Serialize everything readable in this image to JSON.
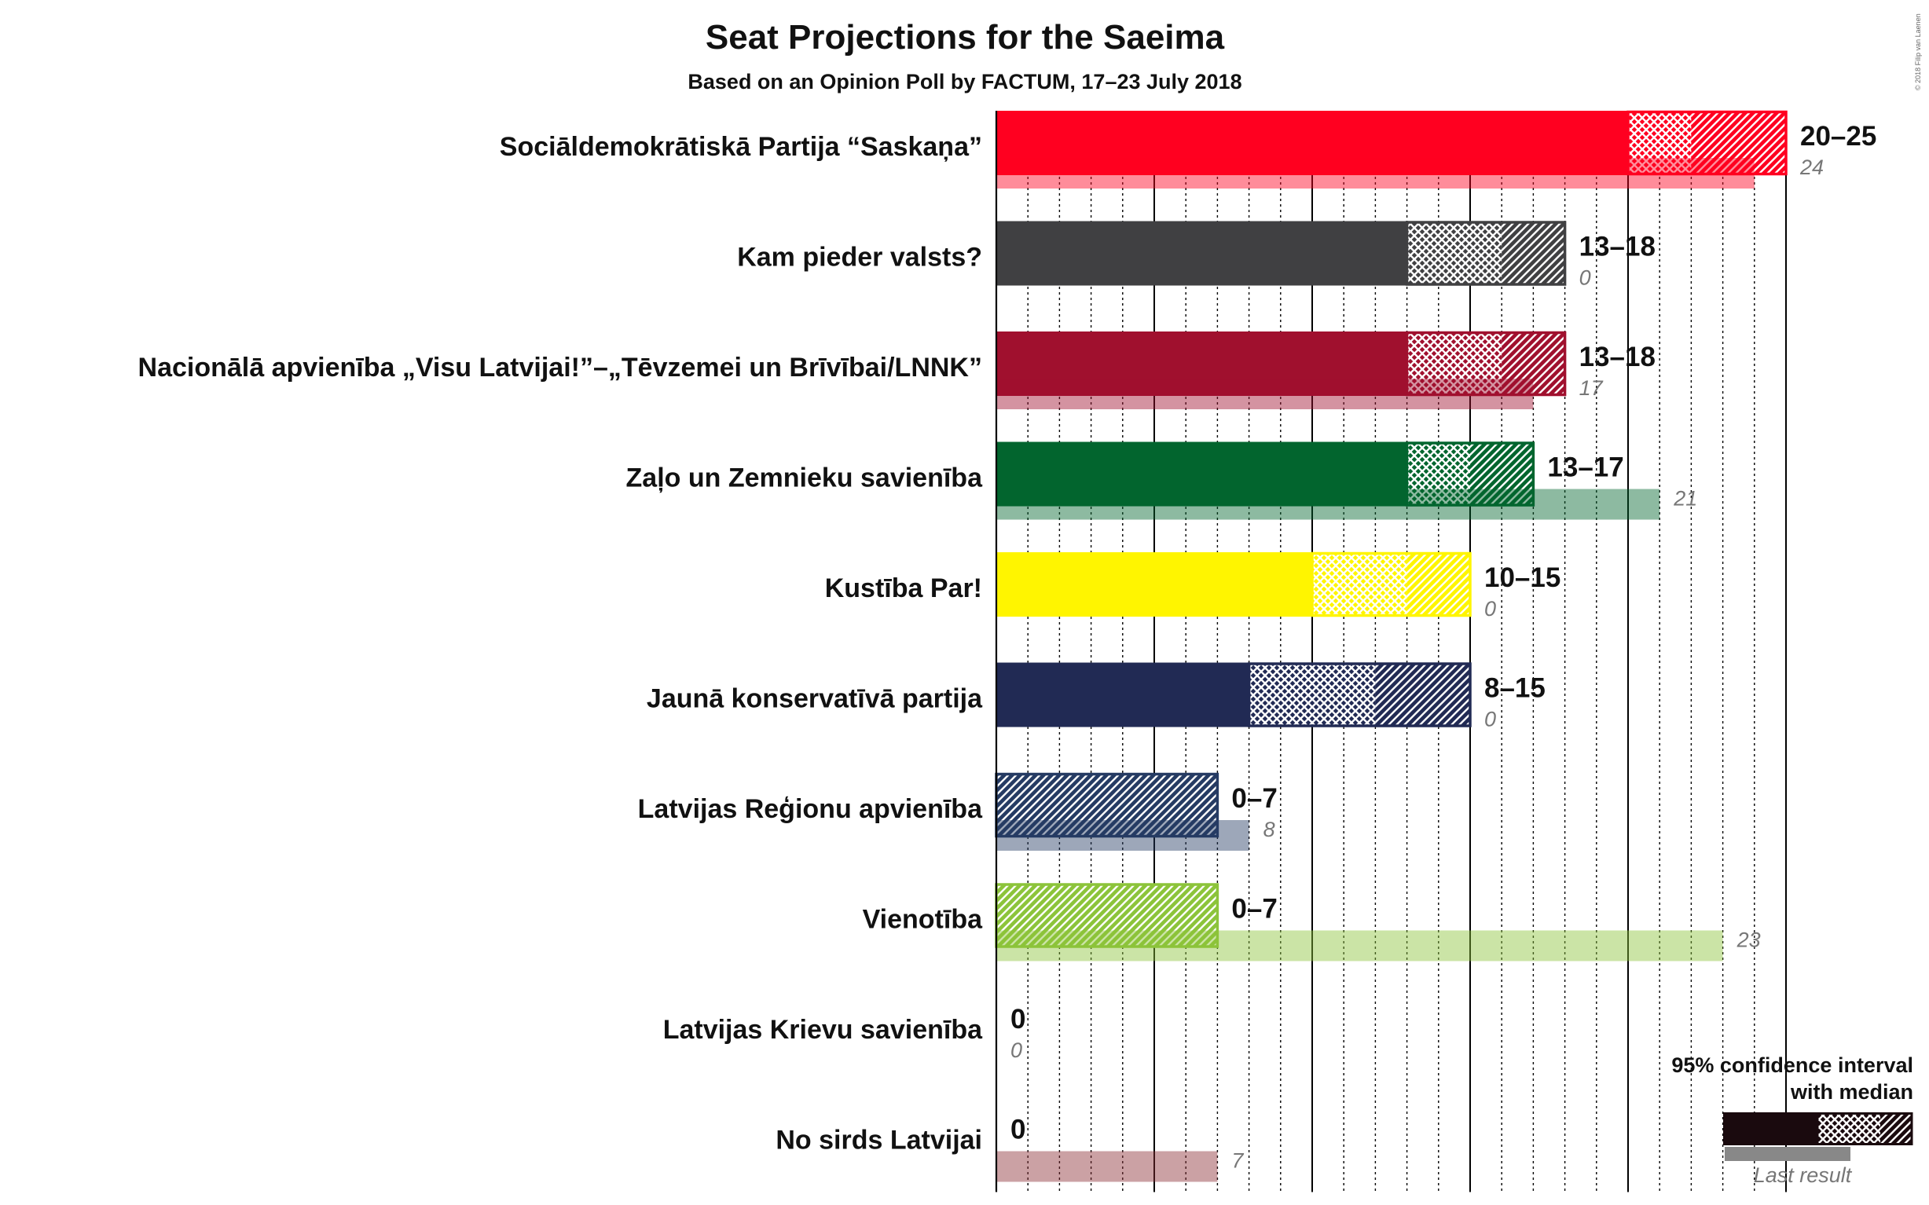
{
  "copyright": "© 2018 Filip van Laenen",
  "chart_data": {
    "type": "bar",
    "title": "Seat Projections for the Saeima",
    "subtitle": "Based on an Opinion Poll by FACTUM, 17–23 July 2018",
    "xlabel": "",
    "ylabel": "",
    "x_range": [
      0,
      25
    ],
    "grid": true,
    "legend_position": "bottom-right",
    "legend": {
      "title_line1": "95% confidence interval",
      "title_line2": "with median",
      "last_result_label": "Last result",
      "color": "#1a0a0e"
    },
    "parties": [
      {
        "name": "Sociāldemokrātiskā Partija “Saskaņa”",
        "color": "#ff0020",
        "low": 20,
        "median": 22,
        "high": 25,
        "range_label": "20–25",
        "last": 24,
        "last_label": "24"
      },
      {
        "name": "Kam pieder valsts?",
        "color": "#404042",
        "low": 13,
        "median": 16,
        "high": 18,
        "range_label": "13–18",
        "last": 0,
        "last_label": "0"
      },
      {
        "name": "Nacionālā apvienība „Visu Latvijai!”–„Tēvzemei un Brīvībai/LNNK”",
        "color": "#a0102e",
        "low": 13,
        "median": 16,
        "high": 18,
        "range_label": "13–18",
        "last": 17,
        "last_label": "17"
      },
      {
        "name": "Zaļo un Zemnieku savienība",
        "color": "#02652e",
        "low": 13,
        "median": 15,
        "high": 17,
        "range_label": "13–17",
        "last": 21,
        "last_label": "21"
      },
      {
        "name": "Kustība Par!",
        "color": "#fff500",
        "low": 10,
        "median": 13,
        "high": 15,
        "range_label": "10–15",
        "last": 0,
        "last_label": "0"
      },
      {
        "name": "Jaunā konservatīvā partija",
        "color": "#212a54",
        "low": 8,
        "median": 12,
        "high": 15,
        "range_label": "8–15",
        "last": 0,
        "last_label": "0"
      },
      {
        "name": "Latvijas Reģionu apvienība",
        "color": "#253b63",
        "low": 0,
        "median": 0,
        "high": 7,
        "range_label": "0–7",
        "last": 8,
        "last_label": "8"
      },
      {
        "name": "Vienotība",
        "color": "#8cc43a",
        "low": 0,
        "median": 0,
        "high": 7,
        "range_label": "0–7",
        "last": 23,
        "last_label": "23"
      },
      {
        "name": "Latvijas Krievu savienība",
        "color": "#2a7fd0",
        "low": 0,
        "median": 0,
        "high": 0,
        "range_label": "0",
        "last": 0,
        "last_label": "0"
      },
      {
        "name": "No sirds Latvijai",
        "color": "#8b2e35",
        "low": 0,
        "median": 0,
        "high": 0,
        "range_label": "0",
        "last": 7,
        "last_label": "7"
      }
    ]
  }
}
